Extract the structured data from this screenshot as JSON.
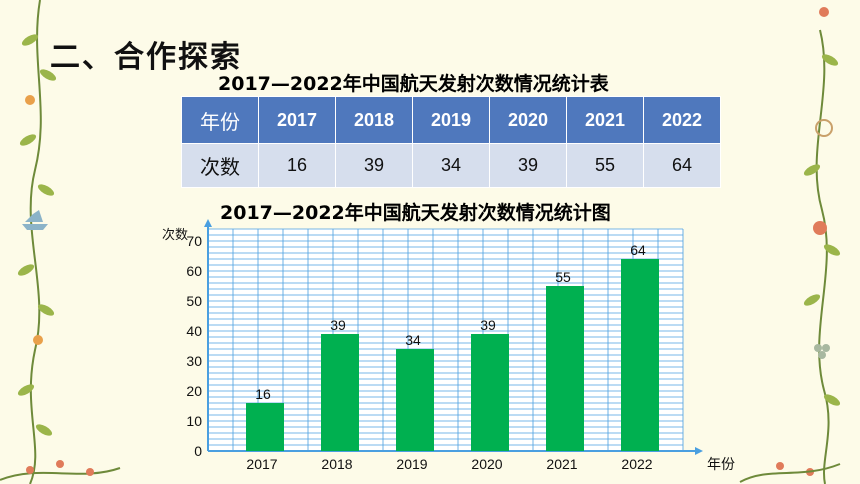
{
  "section": {
    "title": "二、合作探索"
  },
  "table": {
    "title": "2017—2022年中国航天发射次数情况统计表",
    "row_header": "年份",
    "row_values_label": "次数",
    "years": [
      "2017",
      "2018",
      "2019",
      "2020",
      "2021",
      "2022"
    ],
    "counts": [
      "16",
      "39",
      "34",
      "39",
      "55",
      "64"
    ]
  },
  "chart_data": {
    "type": "bar",
    "title": "2017—2022年中国航天发射次数情况统计图",
    "categories": [
      "2017",
      "2018",
      "2019",
      "2020",
      "2021",
      "2022"
    ],
    "values": [
      16,
      39,
      34,
      39,
      55,
      64
    ],
    "data_labels": [
      "16",
      "39",
      "34",
      "39",
      "55",
      "64"
    ],
    "xlabel": "年份",
    "ylabel": "次数",
    "ylim": [
      0,
      74
    ],
    "yticks": [
      "0",
      "10",
      "20",
      "30",
      "40",
      "50",
      "60",
      "70"
    ],
    "grid": true,
    "colors": {
      "bar": "#00b050",
      "grid": "#4a9fe0",
      "axis": "#4a9fe0"
    }
  }
}
